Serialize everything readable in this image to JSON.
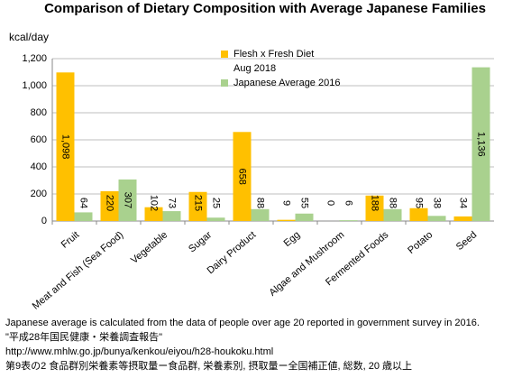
{
  "chart_data": {
    "type": "bar",
    "title": "Comparison of Dietary Composition with Average Japanese Families",
    "y_label": "kcal/day",
    "categories": [
      "Fruit",
      "Meat and Fish (Sea Food)",
      "Vegetable",
      "Sugar",
      "Dairy Product",
      "Egg",
      "Algae and Mushroom",
      "Fermented Foods",
      "Potato",
      "Seed"
    ],
    "series": [
      {
        "name": "Flesh x Fresh Diet\nAug 2018",
        "color": "#ffc000",
        "values": [
          1098,
          220,
          102,
          215,
          658,
          9,
          0,
          188,
          95,
          34
        ],
        "value_labels": [
          "1,098",
          "220",
          "102",
          "215",
          "658",
          "9",
          "0",
          "188",
          "95",
          "34"
        ]
      },
      {
        "name": "Japanese Average 2016",
        "color": "#a9d18e",
        "values": [
          64,
          307,
          73,
          25,
          88,
          55,
          6,
          88,
          38,
          1136
        ],
        "value_labels": [
          "64",
          "307",
          "73",
          "25",
          "88",
          "55",
          "6",
          "88",
          "38",
          "1,136"
        ]
      }
    ],
    "ylim": [
      0,
      1200
    ],
    "yticks": [
      0,
      200,
      400,
      600,
      800,
      {
        "value": 1000,
        "label": "1,000"
      },
      {
        "value": 1200,
        "label": "1,200"
      }
    ],
    "grid": true,
    "notes": [
      "Japanese average is calculated from the data of people over age 20 reported in government survey in 2016.",
      "\"平成28年国民健康・栄養調査報告\"",
      "http://www.mhlw.go.jp/bunya/kenkou/eiyou/h28-houkoku.html",
      "第9表の2  食品群別栄養素等摂取量ー食品群, 栄養素別, 摂取量ー全国補正値, 総数, 20 歳以上"
    ]
  }
}
